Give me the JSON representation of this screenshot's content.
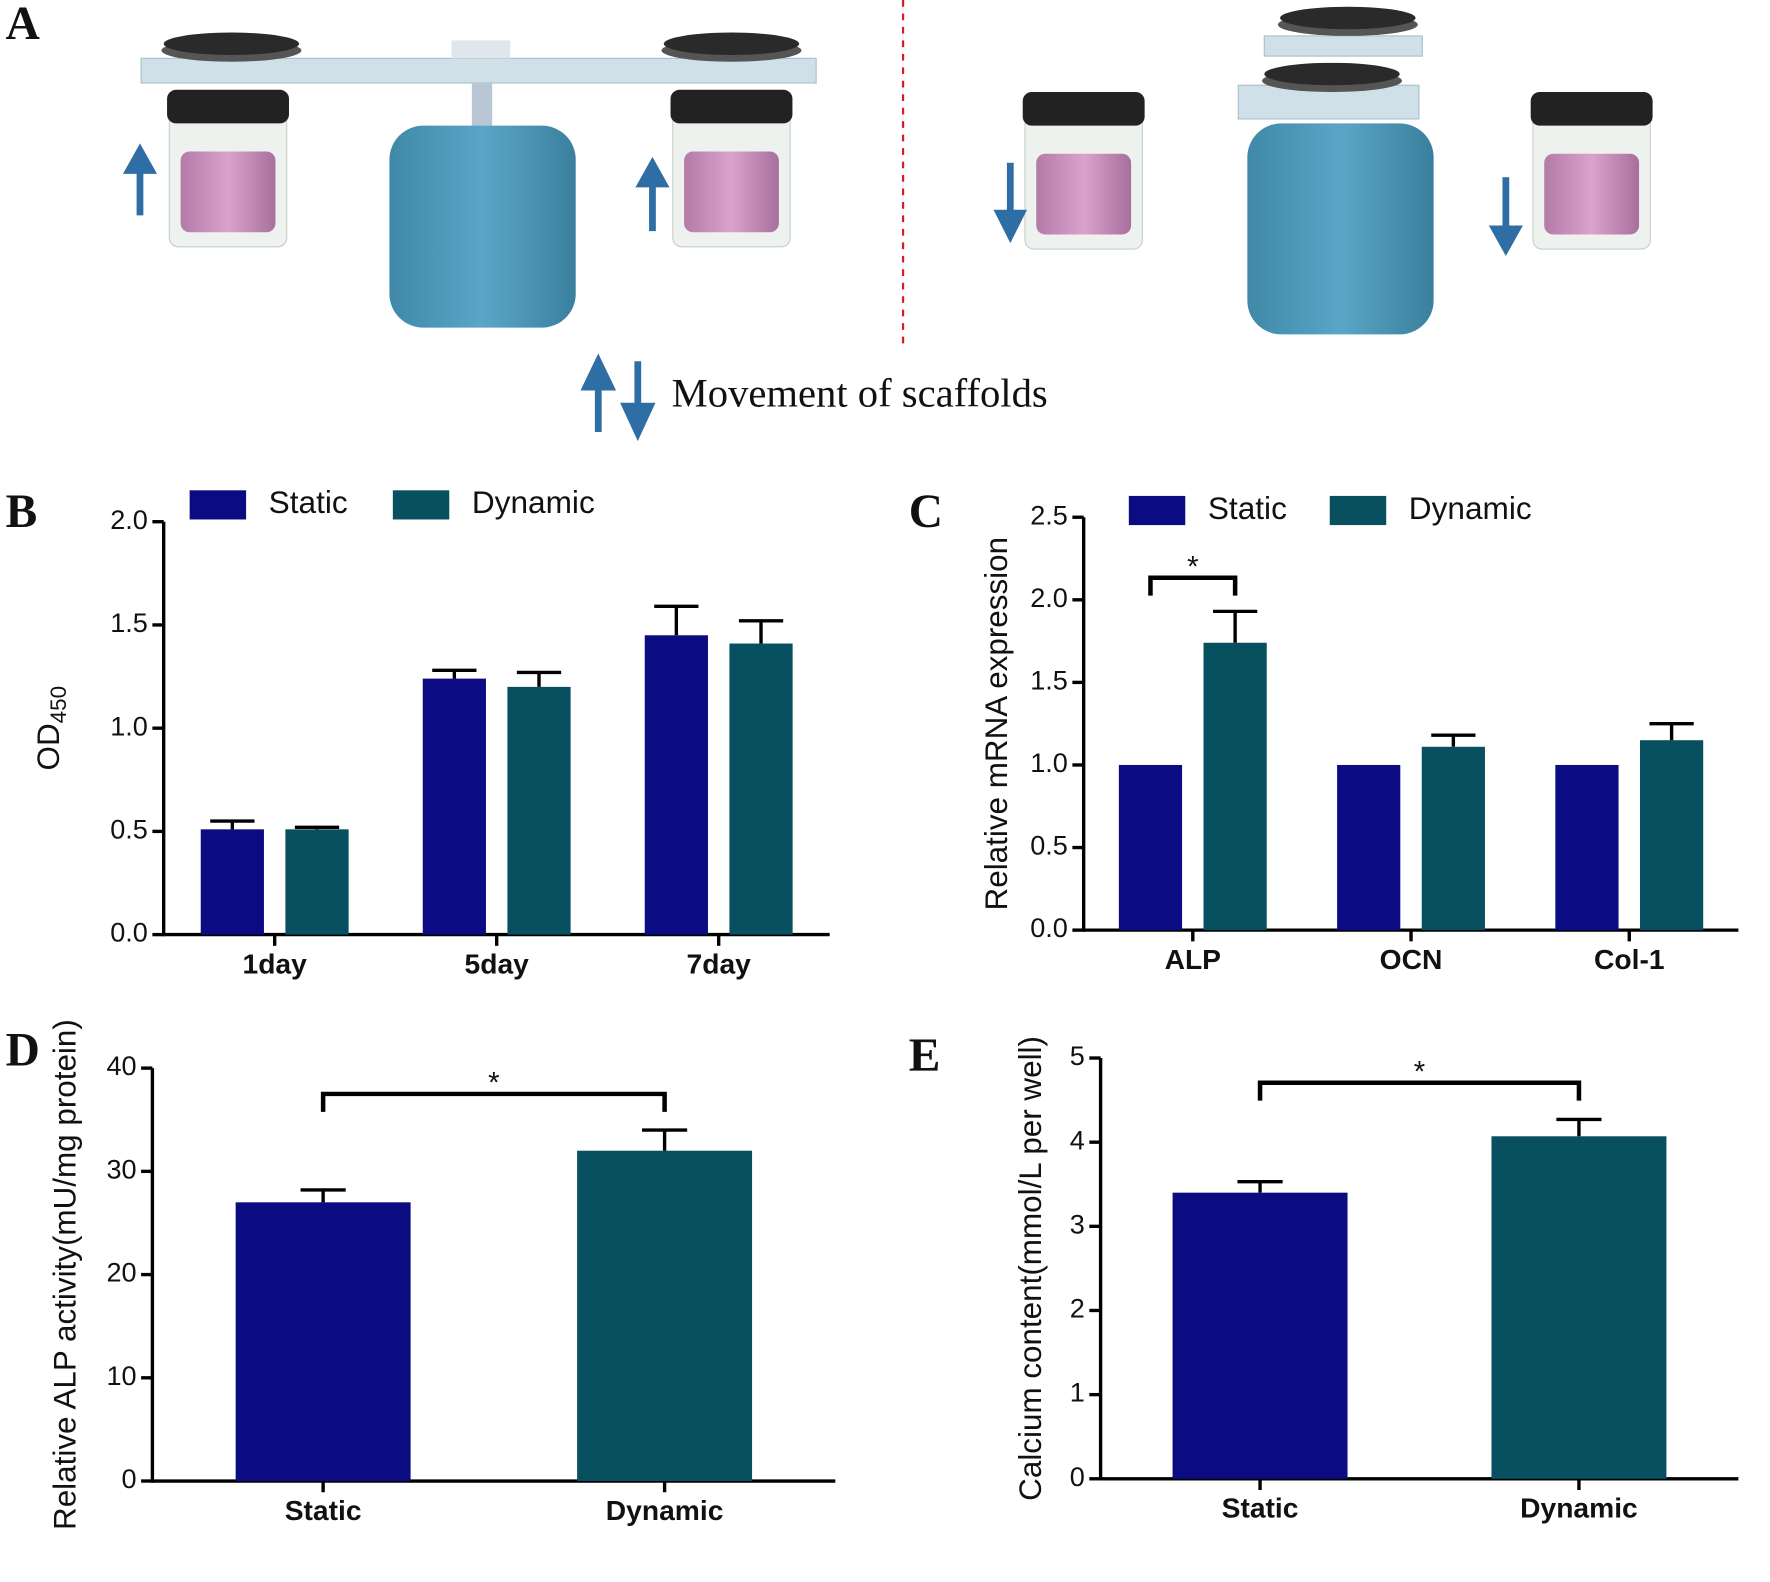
{
  "figure_a": {
    "label": "A",
    "caption": "Movement of scaffolds"
  },
  "chart_data": [
    {
      "type": "bar",
      "label": "B",
      "y_label": "OD",
      "y_label_subscript": "450",
      "categories": [
        "1day",
        "5day",
        "7day"
      ],
      "series": [
        {
          "name": "Static",
          "color": "#0c0c82",
          "values": [
            0.51,
            1.24,
            1.45
          ],
          "errors": [
            0.04,
            0.04,
            0.14
          ]
        },
        {
          "name": "Dynamic",
          "color": "#08505f",
          "values": [
            0.51,
            1.2,
            1.41
          ],
          "errors": [
            0.01,
            0.07,
            0.11
          ]
        }
      ],
      "ylim": [
        0,
        2
      ],
      "yticks": [
        {
          "value": 0,
          "label": "0.0"
        },
        0.5,
        {
          "value": 1,
          "label": "1.0"
        },
        1.5,
        {
          "value": 2,
          "label": "2.0"
        }
      ]
    },
    {
      "type": "bar",
      "label": "C",
      "y_label": "Relative mRNA expression",
      "categories": [
        "ALP",
        "OCN",
        "Col-1"
      ],
      "series": [
        {
          "name": "Static",
          "color": "#0c0c82",
          "values": [
            1.0,
            1.0,
            1.0
          ],
          "errors": [
            0,
            0,
            0
          ]
        },
        {
          "name": "Dynamic",
          "color": "#08505f",
          "values": [
            1.74,
            1.11,
            1.15
          ],
          "errors": [
            0.19,
            0.07,
            0.1
          ]
        }
      ],
      "ylim": [
        0,
        2.5
      ],
      "yticks": [
        {
          "value": 0,
          "label": "0.0"
        },
        0.5,
        {
          "value": 1,
          "label": "1.0"
        },
        1.5,
        {
          "value": 2,
          "label": "2.0"
        },
        2.5
      ],
      "annotation": "*"
    },
    {
      "type": "bar",
      "label": "D",
      "y_label": "Relative ALP activity(mU/mg protein)",
      "categories": [
        "Static",
        "Dynamic"
      ],
      "values": [
        27,
        32
      ],
      "errors": [
        1.2,
        2
      ],
      "colors": [
        "#0c0c82",
        "#08505f"
      ],
      "ylim": [
        0,
        40
      ],
      "yticks": [
        0,
        10,
        20,
        30,
        40
      ],
      "annotation": "*"
    },
    {
      "type": "bar",
      "label": "E",
      "y_label": "Calcium content(mmol/L per well)",
      "categories": [
        "Static",
        "Dynamic"
      ],
      "values": [
        3.4,
        4.07
      ],
      "errors": [
        0.13,
        0.2
      ],
      "colors": [
        "#0c0c82",
        "#08505f"
      ],
      "ylim": [
        0,
        5
      ],
      "yticks": [
        0,
        1,
        2,
        3,
        4,
        5
      ],
      "annotation": "*"
    }
  ]
}
